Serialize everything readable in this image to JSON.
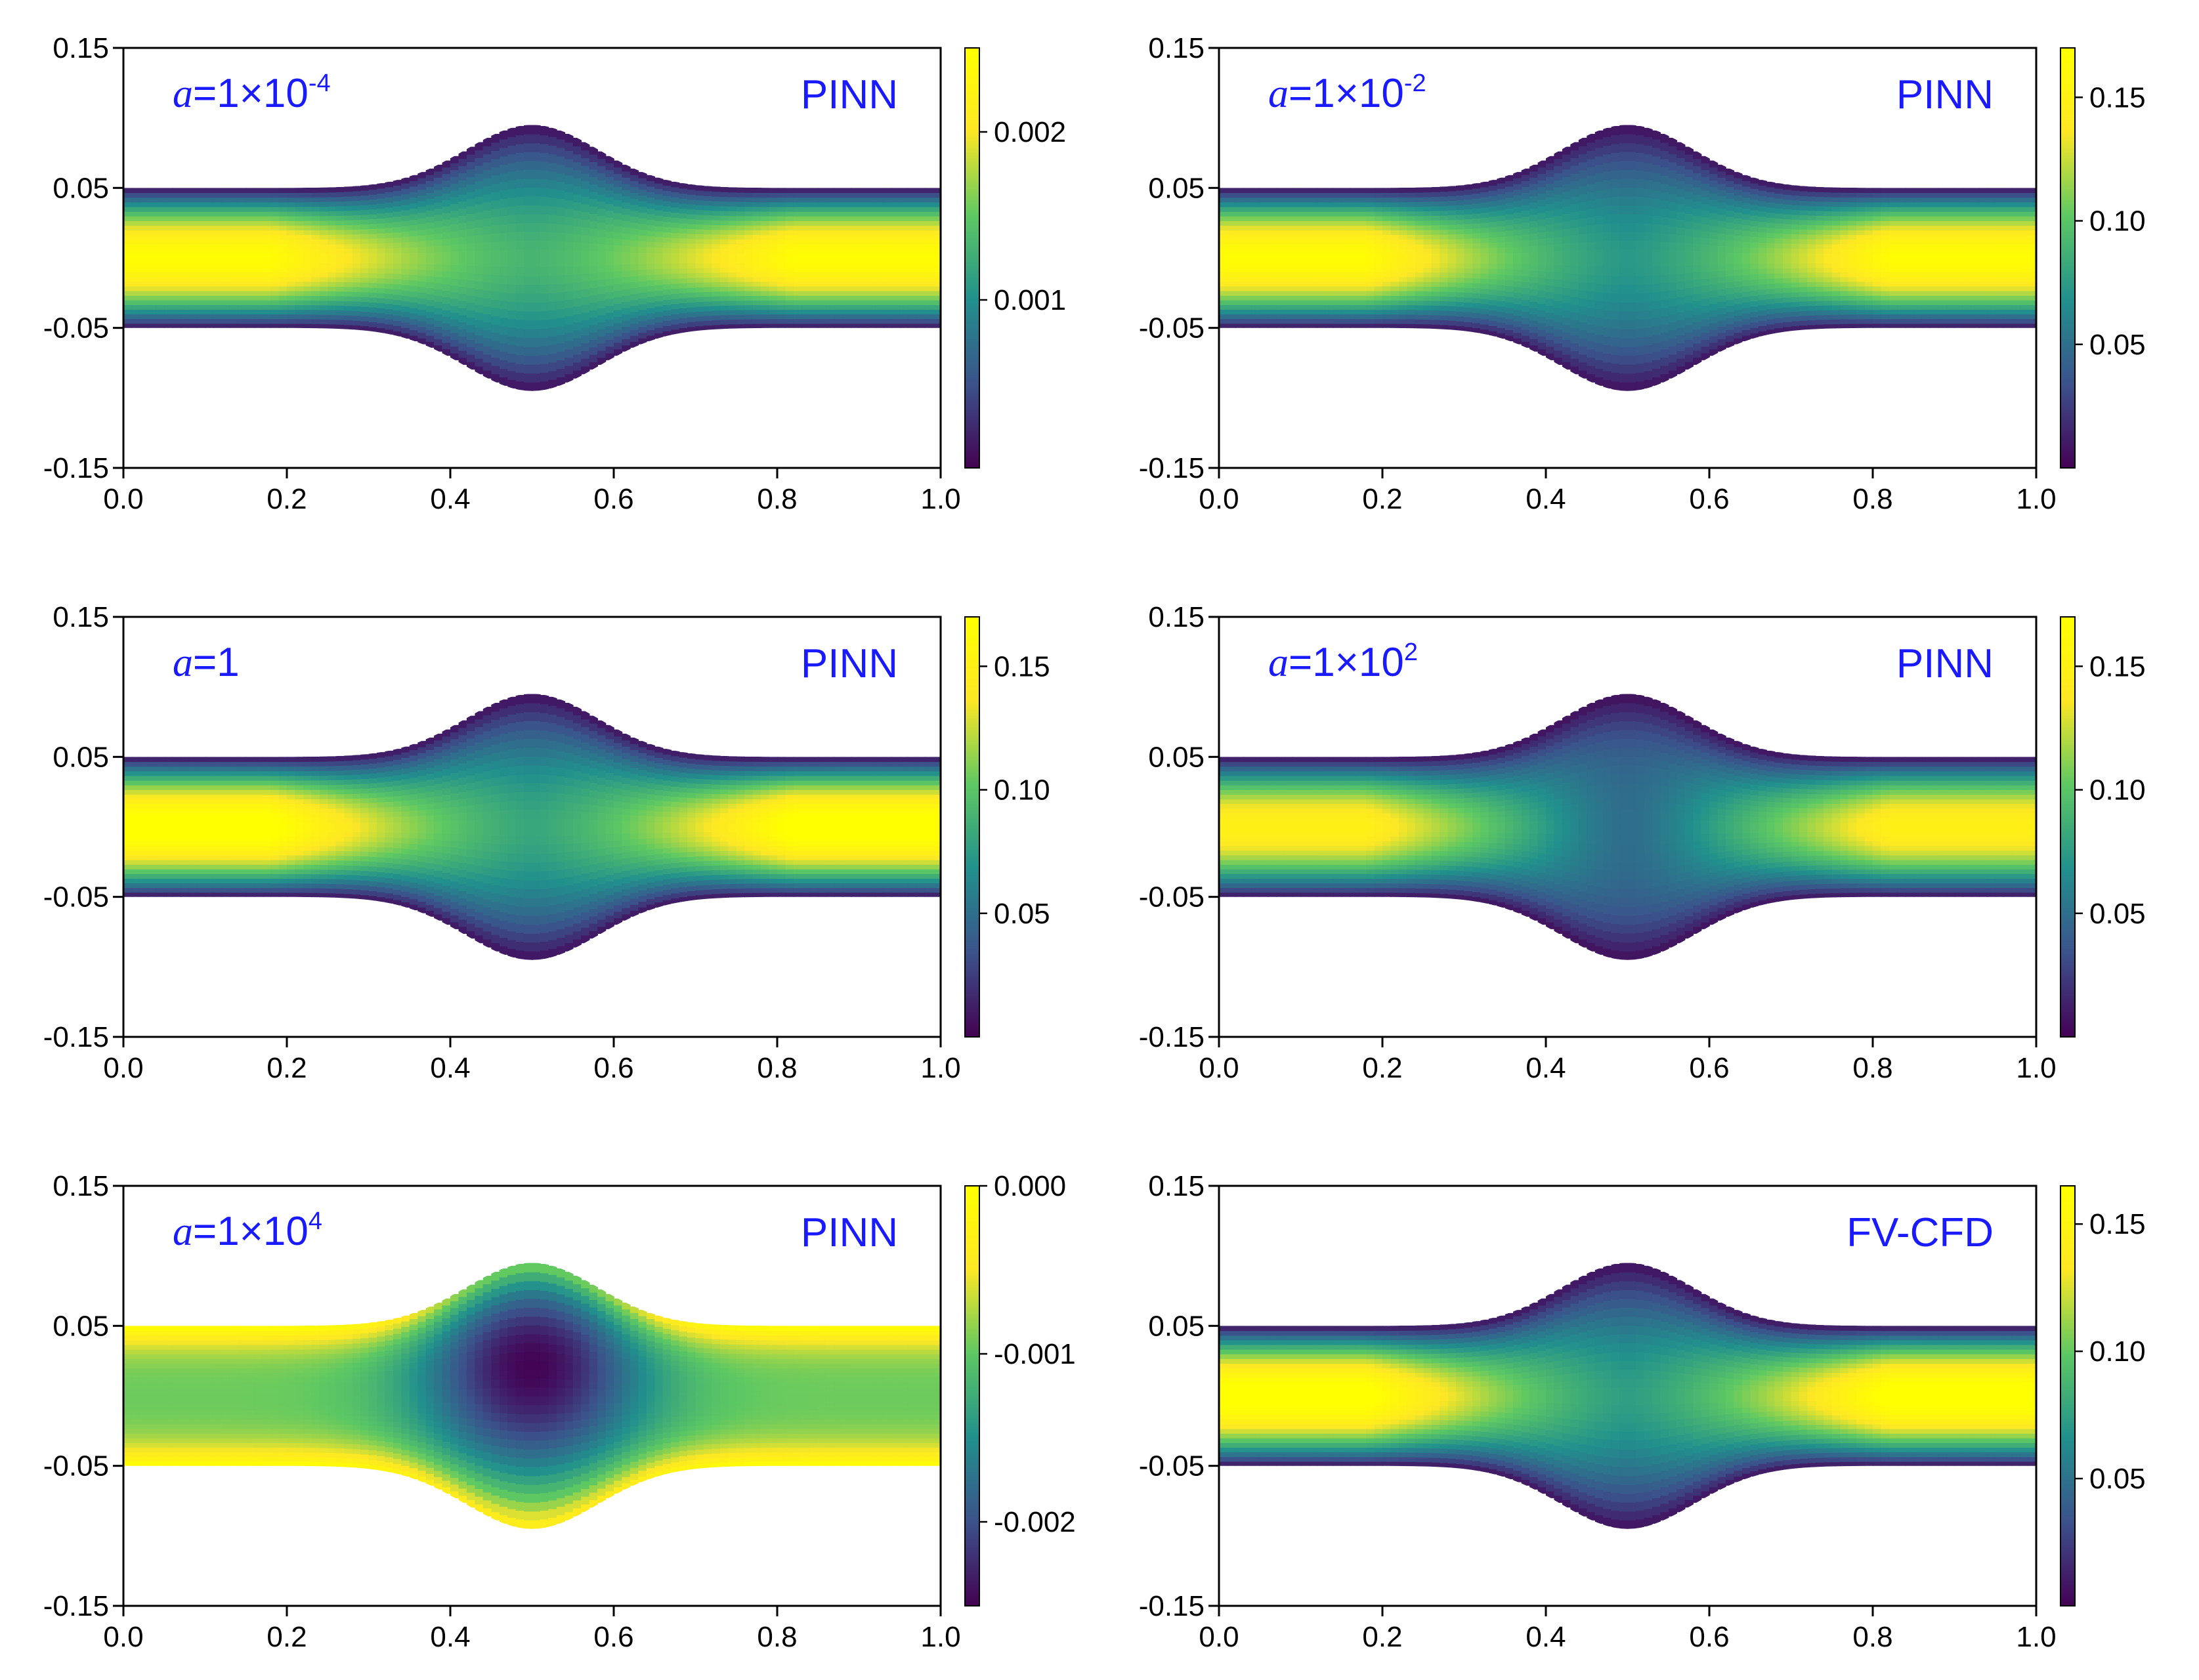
{
  "colors": {
    "annotation": "#1a1aff",
    "axis": "#000000",
    "colormap": [
      "#440154",
      "#3b528b",
      "#21908d",
      "#5dc863",
      "#fde725",
      "#ffff00"
    ]
  },
  "chart_data": [
    {
      "type": "heatmap",
      "param_symbol": "a",
      "param_text": "=1×10",
      "param_exp": "-4",
      "label": "PINN",
      "xlim": [
        0.0,
        1.0
      ],
      "ylim": [
        -0.15,
        0.15
      ],
      "xticks": [
        "0.0",
        "0.2",
        "0.4",
        "0.6",
        "0.8",
        "1.0"
      ],
      "yticks": [
        "0.15",
        "0.05",
        "-0.05",
        "-0.15"
      ],
      "colorbar": {
        "range": [
          0.0,
          0.0025
        ],
        "ticks": [
          0.002,
          0.001
        ],
        "tick_labels": [
          "0.002",
          "0.001"
        ]
      },
      "field": {
        "core": 0.95,
        "center": 0.5,
        "low_core": 0.5,
        "center_dark": false,
        "inverted": false
      }
    },
    {
      "type": "heatmap",
      "param_symbol": "a",
      "param_text": "=1×10",
      "param_exp": "-2",
      "label": "PINN",
      "xlim": [
        0.0,
        1.0
      ],
      "ylim": [
        -0.15,
        0.15
      ],
      "xticks": [
        "0.0",
        "0.2",
        "0.4",
        "0.6",
        "0.8",
        "1.0"
      ],
      "yticks": [
        "0.15",
        "0.05",
        "-0.05",
        "-0.15"
      ],
      "colorbar": {
        "range": [
          0.0,
          0.17
        ],
        "ticks": [
          0.15,
          0.1,
          0.05
        ],
        "tick_labels": [
          "0.15",
          "0.10",
          "0.05"
        ]
      },
      "field": {
        "core": 0.95,
        "center": 0.5,
        "low_core": 0.4,
        "center_dark": false,
        "inverted": false
      }
    },
    {
      "type": "heatmap",
      "param_symbol": "a",
      "param_text": "=1",
      "param_exp": "",
      "label": "PINN",
      "xlim": [
        0.0,
        1.0
      ],
      "ylim": [
        -0.15,
        0.15
      ],
      "xticks": [
        "0.0",
        "0.2",
        "0.4",
        "0.6",
        "0.8",
        "1.0"
      ],
      "yticks": [
        "0.15",
        "0.05",
        "-0.05",
        "-0.15"
      ],
      "colorbar": {
        "range": [
          0.0,
          0.17
        ],
        "ticks": [
          0.15,
          0.1,
          0.05
        ],
        "tick_labels": [
          "0.15",
          "0.10",
          "0.05"
        ]
      },
      "field": {
        "core": 1.0,
        "center": 0.5,
        "low_core": 0.45,
        "center_dark": false,
        "inverted": false
      }
    },
    {
      "type": "heatmap",
      "param_symbol": "a",
      "param_text": "=1×10",
      "param_exp": "2",
      "label": "PINN",
      "xlim": [
        0.0,
        1.0
      ],
      "ylim": [
        -0.15,
        0.15
      ],
      "xticks": [
        "0.0",
        "0.2",
        "0.4",
        "0.6",
        "0.8",
        "1.0"
      ],
      "yticks": [
        "0.15",
        "0.05",
        "-0.05",
        "-0.15"
      ],
      "colorbar": {
        "range": [
          0.0,
          0.17
        ],
        "ticks": [
          0.15,
          0.1,
          0.05
        ],
        "tick_labels": [
          "0.15",
          "0.10",
          "0.05"
        ]
      },
      "field": {
        "core": 0.85,
        "center": 0.5,
        "low_core": 0.38,
        "center_dark": true,
        "inverted": false
      }
    },
    {
      "type": "heatmap",
      "param_symbol": "a",
      "param_text": "=1×10",
      "param_exp": "4",
      "label": "PINN",
      "xlim": [
        0.0,
        1.0
      ],
      "ylim": [
        -0.15,
        0.15
      ],
      "xticks": [
        "0.0",
        "0.2",
        "0.4",
        "0.6",
        "0.8",
        "1.0"
      ],
      "yticks": [
        "0.15",
        "0.05",
        "-0.05",
        "-0.15"
      ],
      "colorbar": {
        "range": [
          -0.0025,
          0.0
        ],
        "ticks": [
          0.0,
          -0.001,
          -0.002
        ],
        "tick_labels": [
          "0.000",
          "-0.001",
          "-0.002"
        ]
      },
      "field": {
        "core": 0.7,
        "center": 0.5,
        "low_core": 0.0,
        "center_dark": true,
        "inverted": true
      }
    },
    {
      "type": "heatmap",
      "param_symbol": "",
      "param_text": "",
      "param_exp": "",
      "label": "FV-CFD",
      "xlim": [
        0.0,
        1.0
      ],
      "ylim": [
        -0.15,
        0.15
      ],
      "xticks": [
        "0.0",
        "0.2",
        "0.4",
        "0.6",
        "0.8",
        "1.0"
      ],
      "yticks": [
        "0.15",
        "0.05",
        "-0.05",
        "-0.15"
      ],
      "colorbar": {
        "range": [
          0.0,
          0.165
        ],
        "ticks": [
          0.15,
          0.1,
          0.05
        ],
        "tick_labels": [
          "0.15",
          "0.10",
          "0.05"
        ]
      },
      "field": {
        "core": 1.0,
        "center": 0.5,
        "low_core": 0.42,
        "center_dark": false,
        "inverted": false
      }
    }
  ]
}
